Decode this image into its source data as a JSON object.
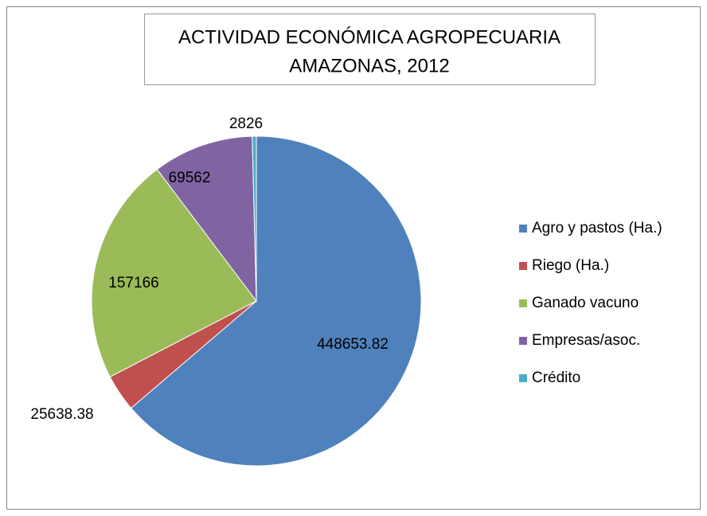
{
  "chart_data": {
    "type": "pie",
    "title": [
      "ACTIVIDAD ECONÓMICA AGROPECUARIA",
      "AMAZONAS, 2012"
    ],
    "categories": [
      "Agro y pastos (Ha.)",
      "Riego (Ha.)",
      "Ganado vacuno",
      "Empresas/asoc.",
      "Crédito"
    ],
    "values": [
      448653.82,
      25638.38,
      157166,
      69562,
      2826
    ],
    "colors": [
      "#4f81bd",
      "#c0504d",
      "#9bbb59",
      "#8064a2",
      "#4bacc6"
    ],
    "legend": "right"
  }
}
